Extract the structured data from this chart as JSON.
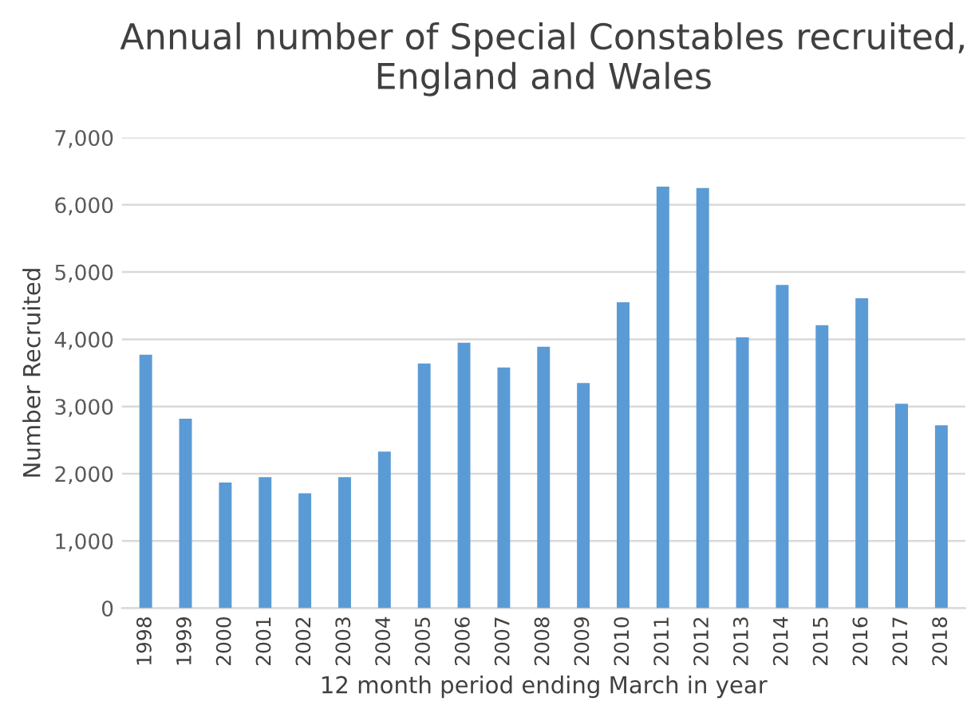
{
  "chart_data": {
    "type": "bar",
    "title": "Annual number of Special Constables recruited,\nEngland and Wales",
    "xlabel": "12 month period ending March in year",
    "ylabel": "Number Recruited",
    "categories": [
      "1998",
      "1999",
      "2000",
      "2001",
      "2002",
      "2003",
      "2004",
      "2005",
      "2006",
      "2007",
      "2008",
      "2009",
      "2010",
      "2011",
      "2012",
      "2013",
      "2014",
      "2015",
      "2016",
      "2017",
      "2018"
    ],
    "values": [
      3770,
      2820,
      1870,
      1950,
      1710,
      1950,
      2330,
      3640,
      3950,
      3580,
      3890,
      3350,
      4550,
      6270,
      6250,
      4030,
      4810,
      4210,
      4610,
      3040,
      2720
    ],
    "color": "#5b9bd5",
    "ylim": [
      0,
      7000
    ],
    "yticks": [
      {
        "value": 0,
        "label": "0"
      },
      {
        "value": 1000,
        "label": "1,000"
      },
      {
        "value": 2000,
        "label": "2,000"
      },
      {
        "value": 3000,
        "label": "3,000"
      },
      {
        "value": 4000,
        "label": "4,000"
      },
      {
        "value": 5000,
        "label": "5,000"
      },
      {
        "value": 6000,
        "label": "6,000"
      },
      {
        "value": 7000,
        "label": "7,000"
      }
    ],
    "grid": "y"
  }
}
